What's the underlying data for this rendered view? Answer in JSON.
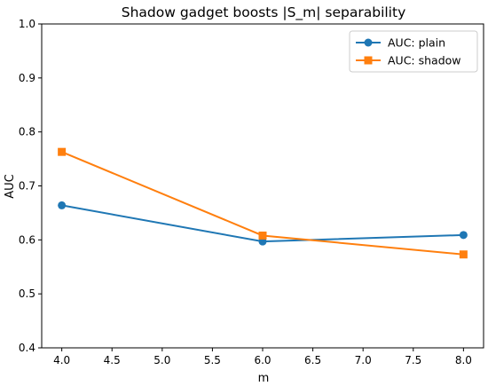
{
  "chart_data": {
    "type": "line",
    "title": "Shadow gadget boosts |S_m| separability",
    "xlabel": "m",
    "ylabel": "AUC",
    "xlim": [
      3.8,
      8.2
    ],
    "ylim": [
      0.4,
      1.0
    ],
    "xticks": [
      4.0,
      4.5,
      5.0,
      5.5,
      6.0,
      6.5,
      7.0,
      7.5,
      8.0
    ],
    "xtick_labels": [
      "4.0",
      "4.5",
      "5.0",
      "5.5",
      "6.0",
      "6.5",
      "7.0",
      "7.5",
      "8.0"
    ],
    "yticks": [
      0.4,
      0.5,
      0.6,
      0.7,
      0.8,
      0.9,
      1.0
    ],
    "ytick_labels": [
      "0.4",
      "0.5",
      "0.6",
      "0.7",
      "0.8",
      "0.9",
      "1.0"
    ],
    "grid": false,
    "legend_position": "top-right",
    "series": [
      {
        "name": "AUC: plain",
        "x": [
          4.0,
          6.0,
          8.0
        ],
        "y": [
          0.664,
          0.597,
          0.609
        ],
        "color": "#1f77b4",
        "marker": "circle"
      },
      {
        "name": "AUC: shadow",
        "x": [
          4.0,
          6.0,
          8.0
        ],
        "y": [
          0.763,
          0.608,
          0.573
        ],
        "color": "#ff7f0e",
        "marker": "square"
      }
    ]
  }
}
